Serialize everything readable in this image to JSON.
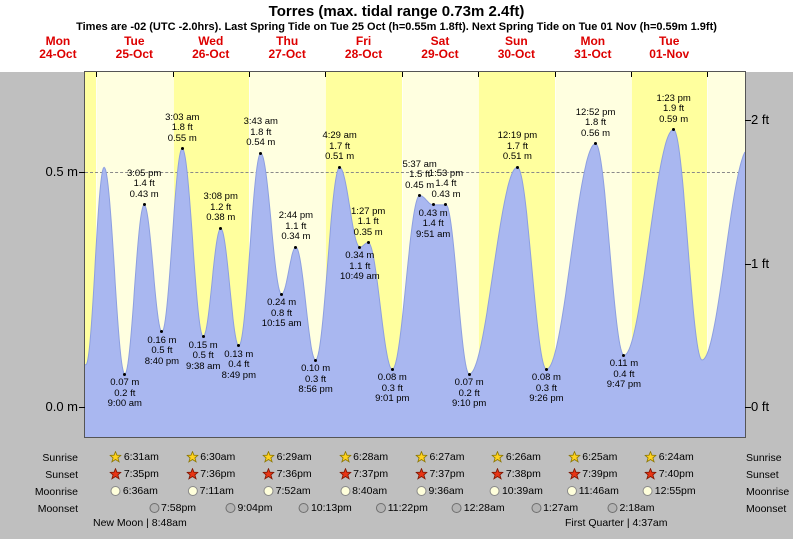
{
  "title": "Torres (max. tidal range 0.73m 2.4ft)",
  "subtitle": "Times are -02 (UTC -2.0hrs). Last Spring Tide on Tue 25 Oct (h=0.55m 1.8ft). Next Spring Tide on Tue 01 Nov (h=0.59m 1.9ft)",
  "days": [
    {
      "name": "Mon",
      "date": "24-Oct"
    },
    {
      "name": "Tue",
      "date": "25-Oct"
    },
    {
      "name": "Wed",
      "date": "26-Oct"
    },
    {
      "name": "Thu",
      "date": "27-Oct"
    },
    {
      "name": "Fri",
      "date": "28-Oct"
    },
    {
      "name": "Sat",
      "date": "29-Oct"
    },
    {
      "name": "Sun",
      "date": "30-Oct"
    },
    {
      "name": "Mon",
      "date": "31-Oct"
    },
    {
      "name": "Tue",
      "date": "01-Nov"
    }
  ],
  "y_axis": {
    "left": [
      {
        "label": "0.5 m",
        "value_m": 0.5
      },
      {
        "label": "0.0 m",
        "value_m": 0.0
      }
    ],
    "right": [
      {
        "label": "2 ft",
        "value_m": 0.6096
      },
      {
        "label": "1 ft",
        "value_m": 0.3048
      },
      {
        "label": "0 ft",
        "value_m": 0.0
      }
    ]
  },
  "chart_data": {
    "type": "area",
    "series_name": "tide height",
    "units": [
      "m",
      "ft"
    ],
    "ylim_m": [
      -0.06,
      0.71
    ],
    "timeline": {
      "start_day": "Mon 24 Oct",
      "start_hour": 20.5,
      "end_hour": 227.8,
      "hours_per_day": 24
    },
    "extremes": [
      {
        "t": 20.8,
        "h": 0.09,
        "type": "low",
        "annotated": false
      },
      {
        "t": 26.5,
        "h": 0.51,
        "type": "high",
        "annotated": false
      },
      {
        "t": 33.0,
        "h": 0.07,
        "type": "low",
        "m": "0.07 m",
        "ft": "0.2 ft",
        "time": "9:00 am",
        "annotated": true
      },
      {
        "t": 39.08,
        "h": 0.43,
        "type": "high",
        "m": "0.43 m",
        "ft": "1.4 ft",
        "time": "3:05 pm",
        "annotated": true
      },
      {
        "t": 44.67,
        "h": 0.16,
        "type": "low",
        "m": "0.16 m",
        "ft": "0.5 ft",
        "time": "8:40 pm",
        "annotated": true
      },
      {
        "t": 51.05,
        "h": 0.55,
        "type": "high",
        "m": "0.55 m",
        "ft": "1.8 ft",
        "time": "3:03 am",
        "annotated": true
      },
      {
        "t": 57.63,
        "h": 0.15,
        "type": "low",
        "m": "0.15 m",
        "ft": "0.5 ft",
        "time": "9:38 am",
        "annotated": true
      },
      {
        "t": 63.13,
        "h": 0.38,
        "type": "high",
        "m": "0.38 m",
        "ft": "1.2 ft",
        "time": "3:08 pm",
        "annotated": true
      },
      {
        "t": 68.82,
        "h": 0.13,
        "type": "low",
        "m": "0.13 m",
        "ft": "0.4 ft",
        "time": "8:49 pm",
        "annotated": true
      },
      {
        "t": 75.72,
        "h": 0.54,
        "type": "high",
        "m": "0.54 m",
        "ft": "1.8 ft",
        "time": "3:43 am",
        "annotated": true
      },
      {
        "t": 82.25,
        "h": 0.24,
        "type": "low",
        "m": "0.24 m",
        "ft": "0.8 ft",
        "time": "10:15 am",
        "annotated": true
      },
      {
        "t": 86.73,
        "h": 0.34,
        "type": "high",
        "m": "0.34 m",
        "ft": "1.1 ft",
        "time": "2:44 pm",
        "annotated": true
      },
      {
        "t": 92.93,
        "h": 0.1,
        "type": "low",
        "m": "0.10 m",
        "ft": "0.3 ft",
        "time": "8:56 pm",
        "annotated": true
      },
      {
        "t": 100.48,
        "h": 0.51,
        "type": "high",
        "m": "0.51 m",
        "ft": "1.7 ft",
        "time": "4:29 am",
        "annotated": true
      },
      {
        "t": 106.82,
        "h": 0.34,
        "type": "low",
        "m": "0.34 m",
        "ft": "1.1 ft",
        "time": "10:49 am",
        "annotated": true
      },
      {
        "t": 109.45,
        "h": 0.35,
        "type": "high",
        "m": "0.35 m",
        "ft": "1.1 ft",
        "time": "1:27 pm",
        "annotated": true
      },
      {
        "t": 117.02,
        "h": 0.08,
        "type": "low",
        "m": "0.08 m",
        "ft": "0.3 ft",
        "time": "9:01 pm",
        "annotated": true
      },
      {
        "t": 125.62,
        "h": 0.45,
        "type": "high",
        "m": "0.45 m",
        "ft": "1.5 ft",
        "time": "5:37 am",
        "annotated": true
      },
      {
        "t": 129.85,
        "h": 0.43,
        "type": "low",
        "m": "0.43 m",
        "ft": "1.4 ft",
        "time": "9:51 am",
        "annotated": true
      },
      {
        "t": 133.88,
        "h": 0.43,
        "type": "high",
        "m": "0.43 m",
        "ft": "1.4 ft",
        "time": "1:53 pm",
        "annotated": true
      },
      {
        "t": 141.17,
        "h": 0.07,
        "type": "low",
        "m": "0.07 m",
        "ft": "0.2 ft",
        "time": "9:10 pm",
        "annotated": true
      },
      {
        "t": 156.32,
        "h": 0.51,
        "type": "high",
        "m": "0.51 m",
        "ft": "1.7 ft",
        "time": "12:19 pm",
        "annotated": true
      },
      {
        "t": 165.43,
        "h": 0.08,
        "type": "low",
        "m": "0.08 m",
        "ft": "0.3 ft",
        "time": "9:26 pm",
        "annotated": true
      },
      {
        "t": 180.87,
        "h": 0.56,
        "type": "high",
        "m": "0.56 m",
        "ft": "1.8 ft",
        "time": "12:52 pm",
        "annotated": true
      },
      {
        "t": 189.78,
        "h": 0.11,
        "type": "low",
        "m": "0.11 m",
        "ft": "0.4 ft",
        "time": "9:47 pm",
        "annotated": true
      },
      {
        "t": 205.38,
        "h": 0.59,
        "type": "high",
        "m": "0.59 m",
        "ft": "1.9 ft",
        "time": "1:23 pm",
        "annotated": true
      },
      {
        "t": 214.3,
        "h": 0.1,
        "type": "low",
        "annotated": false
      },
      {
        "t": 229.0,
        "h": 0.55,
        "type": "high",
        "annotated": false
      }
    ],
    "colors": {
      "area_fill": "#a9b7f0",
      "area_stroke": "#8d9fe0",
      "band_bright": "#ffff9e",
      "band_pale": "#ffffe0",
      "background_gray": "#bfbfbf",
      "day_label_red": "#dd0000"
    }
  },
  "astro": {
    "rows": [
      {
        "label": "Sunrise",
        "icon": "sunrise-star",
        "times": [
          "6:31am",
          "6:30am",
          "6:29am",
          "6:28am",
          "6:27am",
          "6:26am",
          "6:25am",
          "6:24am"
        ]
      },
      {
        "label": "Sunset",
        "icon": "sunset-star",
        "times": [
          "7:35pm",
          "7:36pm",
          "7:36pm",
          "7:37pm",
          "7:37pm",
          "7:38pm",
          "7:39pm",
          "7:40pm"
        ]
      },
      {
        "label": "Moonrise",
        "icon": "moonrise-moon",
        "times": [
          "6:36am",
          "7:11am",
          "7:52am",
          "8:40am",
          "9:36am",
          "10:39am",
          "11:46am",
          "12:55pm"
        ]
      },
      {
        "label": "Moonset",
        "icon": "moonset-moon",
        "times": [
          "7:58pm",
          "9:04pm",
          "10:13pm",
          "11:22pm",
          "12:28am",
          "1:27am",
          "2:18am"
        ]
      }
    ],
    "footer_left": "New Moon | 8:48am",
    "footer_right": "First Quarter | 4:37am"
  }
}
